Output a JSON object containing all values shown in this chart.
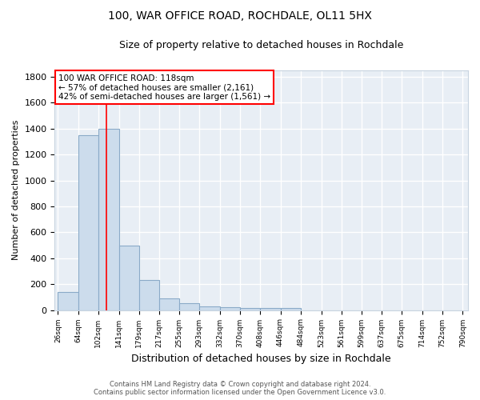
{
  "title": "100, WAR OFFICE ROAD, ROCHDALE, OL11 5HX",
  "subtitle": "Size of property relative to detached houses in Rochdale",
  "xlabel": "Distribution of detached houses by size in Rochdale",
  "ylabel": "Number of detached properties",
  "bar_left_edges": [
    26,
    64,
    102,
    141,
    179,
    217,
    255,
    293,
    332,
    370,
    408,
    446,
    484,
    523,
    561,
    599,
    637,
    675,
    714,
    752
  ],
  "bar_widths": [
    38,
    38,
    39,
    38,
    38,
    38,
    38,
    39,
    38,
    38,
    38,
    38,
    39,
    38,
    38,
    38,
    38,
    39,
    38,
    38
  ],
  "bar_heights": [
    140,
    1350,
    1400,
    500,
    230,
    90,
    55,
    30,
    20,
    15,
    15,
    15,
    0,
    0,
    0,
    0,
    0,
    0,
    0,
    0
  ],
  "bar_color": "#ccdcec",
  "bar_edgecolor": "#8aaac8",
  "x_tick_labels": [
    "26sqm",
    "64sqm",
    "102sqm",
    "141sqm",
    "179sqm",
    "217sqm",
    "255sqm",
    "293sqm",
    "332sqm",
    "370sqm",
    "408sqm",
    "446sqm",
    "484sqm",
    "523sqm",
    "561sqm",
    "599sqm",
    "637sqm",
    "675sqm",
    "714sqm",
    "752sqm",
    "790sqm"
  ],
  "x_tick_positions": [
    26,
    64,
    102,
    141,
    179,
    217,
    255,
    293,
    332,
    370,
    408,
    446,
    484,
    523,
    561,
    599,
    637,
    675,
    714,
    752,
    790
  ],
  "ylim": [
    0,
    1850
  ],
  "xlim": [
    20,
    800
  ],
  "red_line_x": 118,
  "ann_line1": "100 WAR OFFICE ROAD: 118sqm",
  "ann_line2": "← 57% of detached houses are smaller (2,161)",
  "ann_line3": "42% of semi-detached houses are larger (1,561) →",
  "background_color": "#e8eef5",
  "grid_color": "#ffffff",
  "gridline_color": "#c8d4e0",
  "footer_line1": "Contains HM Land Registry data © Crown copyright and database right 2024.",
  "footer_line2": "Contains public sector information licensed under the Open Government Licence v3.0.",
  "title_fontsize": 10,
  "subtitle_fontsize": 9,
  "ytick_values": [
    0,
    200,
    400,
    600,
    800,
    1000,
    1200,
    1400,
    1600,
    1800
  ]
}
